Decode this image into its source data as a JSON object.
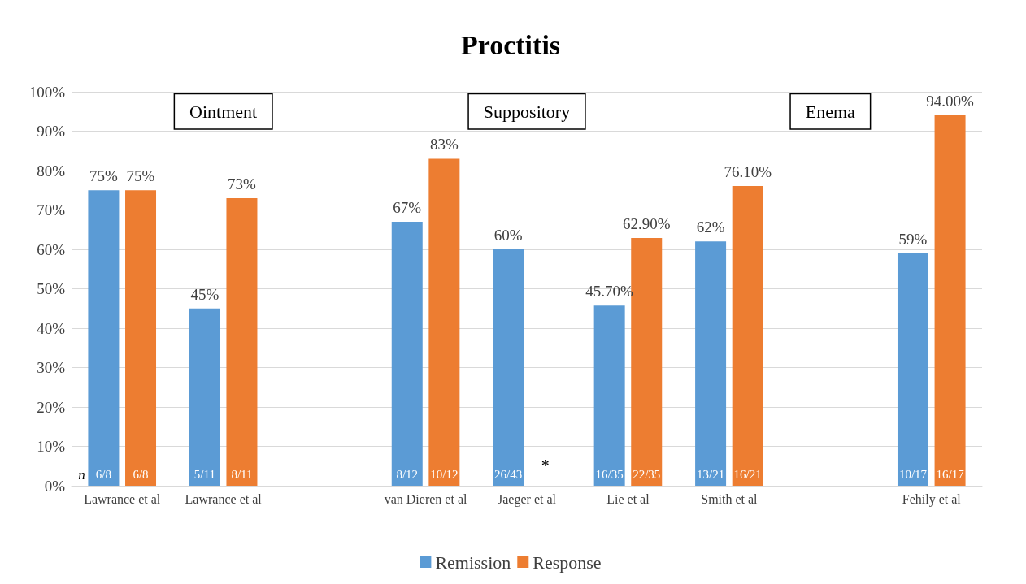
{
  "chart_data": {
    "type": "bar",
    "title": "Proctitis",
    "categories": [
      "Lawrance et al",
      "Lawrance et al",
      null,
      "van Dieren et al",
      "Jaeger et al",
      "Lie et al",
      "Smith et al",
      null,
      "Fehily et al"
    ],
    "series": [
      {
        "name": "Remission",
        "color": "#5b9bd5",
        "values": [
          75,
          45,
          null,
          67,
          60,
          45.7,
          62,
          null,
          59
        ],
        "value_labels": [
          "75%",
          "45%",
          null,
          "67%",
          "60%",
          "45.70%",
          "62%",
          null,
          "59%"
        ]
      },
      {
        "name": "Response",
        "color": "#ed7d31",
        "values": [
          75,
          73,
          null,
          83,
          null,
          62.9,
          76.1,
          null,
          94
        ],
        "value_labels": [
          "75%",
          "73%",
          null,
          "83%",
          null,
          "62.90%",
          "76.10%",
          null,
          "94.00%"
        ]
      }
    ],
    "ylim": [
      0,
      100
    ],
    "yticks": [
      {
        "value": 0,
        "label": "0%"
      },
      {
        "value": 10,
        "label": "10%"
      },
      {
        "value": 20,
        "label": "20%"
      },
      {
        "value": 30,
        "label": "30%"
      },
      {
        "value": 40,
        "label": "40%"
      },
      {
        "value": 50,
        "label": "50%"
      },
      {
        "value": 60,
        "label": "60%"
      },
      {
        "value": 70,
        "label": "70%"
      },
      {
        "value": 80,
        "label": "80%"
      },
      {
        "value": 90,
        "label": "90%"
      },
      {
        "value": 100,
        "label": "100%"
      }
    ],
    "grid": "y",
    "legend": "bottom",
    "annotations": [
      "Ointment",
      "Suppository",
      "Enema",
      "n",
      "6/8",
      "6/8",
      "5/11",
      "8/11",
      "8/12",
      "10/12",
      "26/43",
      "16/35",
      "22/35",
      "13/21",
      "16/21",
      "10/17",
      "16/17",
      {
        "text": "*",
        "x": "Jaeger et al",
        "y": 3
      }
    ]
  }
}
